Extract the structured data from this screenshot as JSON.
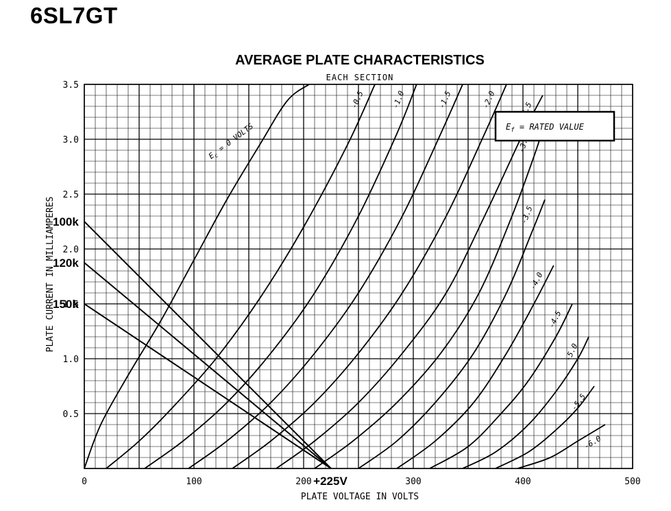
{
  "page": {
    "title": "6SL7GT"
  },
  "chart_data": {
    "type": "line",
    "title": "AVERAGE PLATE CHARACTERISTICS",
    "subtitle": "EACH SECTION",
    "xlabel": "PLATE VOLTAGE IN VOLTS",
    "ylabel": "PLATE CURRENT IN MILLIAMPERES",
    "xlim": [
      0,
      500
    ],
    "ylim": [
      0,
      3.5
    ],
    "xticks": [
      "0",
      "100",
      "200",
      "300",
      "400",
      "500"
    ],
    "yticks": [
      "0.5",
      "1.0",
      "1.5",
      "2.0",
      "2.5",
      "3.0",
      "3.5"
    ],
    "grid": true,
    "annotation_box": "E",
    "annotation_box_sub": "f",
    "annotation_box_rest": "= RATED VALUE",
    "series": [
      {
        "name": "Ec = 0 VOLTS",
        "label": "E",
        "label_sub": "c",
        "label_rest": " = 0 VOLTS",
        "x": [
          0,
          15,
          40,
          70,
          100,
          130,
          160,
          185,
          205
        ],
        "y": [
          0,
          0.4,
          0.85,
          1.35,
          1.9,
          2.45,
          2.95,
          3.35,
          3.5
        ]
      },
      {
        "name": "-0.5",
        "label": "-0.5",
        "x": [
          20,
          50,
          80,
          120,
          160,
          200,
          240,
          265
        ],
        "y": [
          0,
          0.25,
          0.55,
          1.0,
          1.55,
          2.2,
          2.95,
          3.5
        ]
      },
      {
        "name": "-1.0",
        "label": "-1.0",
        "x": [
          55,
          90,
          130,
          170,
          210,
          250,
          285,
          303
        ],
        "y": [
          0,
          0.25,
          0.6,
          1.05,
          1.6,
          2.3,
          3.05,
          3.5
        ]
      },
      {
        "name": "-1.5",
        "label": "-1.5",
        "x": [
          95,
          130,
          170,
          210,
          250,
          290,
          325,
          345
        ],
        "y": [
          0,
          0.25,
          0.6,
          1.05,
          1.6,
          2.3,
          3.05,
          3.5
        ]
      },
      {
        "name": "-2.0",
        "label": "-2.0",
        "x": [
          135,
          170,
          210,
          250,
          290,
          330,
          365,
          385
        ],
        "y": [
          0,
          0.25,
          0.6,
          1.05,
          1.6,
          2.3,
          3.05,
          3.5
        ]
      },
      {
        "name": "-2.5",
        "label": "-2.5",
        "x": [
          175,
          210,
          250,
          290,
          330,
          365,
          400,
          418
        ],
        "y": [
          0,
          0.25,
          0.6,
          1.05,
          1.6,
          2.3,
          3.05,
          3.4
        ]
      },
      {
        "name": "-3.0",
        "label": "-3.0",
        "x": [
          210,
          245,
          285,
          325,
          360,
          390,
          412,
          418
        ],
        "y": [
          0,
          0.25,
          0.6,
          1.05,
          1.6,
          2.3,
          2.9,
          3.1
        ]
      },
      {
        "name": "-3.5",
        "label": "-3.5",
        "x": [
          250,
          285,
          320,
          355,
          385,
          408,
          420
        ],
        "y": [
          0,
          0.25,
          0.6,
          1.05,
          1.6,
          2.15,
          2.45
        ]
      },
      {
        "name": "-4.0",
        "label": "-4.0",
        "x": [
          285,
          320,
          355,
          385,
          410,
          428
        ],
        "y": [
          0,
          0.25,
          0.6,
          1.05,
          1.5,
          1.85
        ]
      },
      {
        "name": "-4.5",
        "label": "-4.5",
        "x": [
          315,
          350,
          380,
          405,
          430,
          445
        ],
        "y": [
          0,
          0.2,
          0.5,
          0.8,
          1.2,
          1.5
        ]
      },
      {
        "name": "-5.0",
        "label": "-5.0",
        "x": [
          345,
          375,
          405,
          430,
          450,
          460
        ],
        "y": [
          0,
          0.15,
          0.4,
          0.7,
          1.0,
          1.2
        ]
      },
      {
        "name": "-5.5",
        "label": "-5.5",
        "x": [
          375,
          405,
          430,
          450,
          465
        ],
        "y": [
          0,
          0.15,
          0.35,
          0.55,
          0.75
        ]
      },
      {
        "name": "-6.0",
        "label": "-6.0",
        "x": [
          395,
          425,
          450,
          475
        ],
        "y": [
          0,
          0.1,
          0.25,
          0.4
        ]
      }
    ],
    "load_lines": [
      {
        "label": "100k",
        "x": [
          0,
          225
        ],
        "y": [
          2.25,
          0
        ]
      },
      {
        "label": "120k",
        "x": [
          0,
          225
        ],
        "y": [
          1.875,
          0
        ]
      },
      {
        "label": "150k",
        "x": [
          0,
          225
        ],
        "y": [
          1.5,
          0
        ]
      }
    ],
    "supply_label": "+225V",
    "supply_x": 225
  }
}
